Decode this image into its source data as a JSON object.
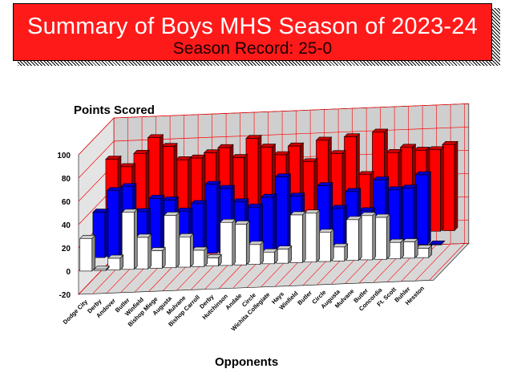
{
  "header": {
    "title": "Summary of Boys MHS Season of 2023-24",
    "subtitle": "Season Record:  25-0"
  },
  "colors": {
    "banner": "#ff1a1a",
    "mhs_points": "#ff0000",
    "avg_points": "#0000ff",
    "margin": "#ffffff",
    "gridlines": "#ff0000"
  },
  "chart_data": {
    "type": "bar",
    "style": "3d-grouped-depth",
    "ylabel": "Points Scored",
    "xlabel": "Opponents",
    "ylim": [
      -20,
      100
    ],
    "yticks": [
      -20,
      0,
      20,
      40,
      60,
      80,
      100
    ],
    "grid": true,
    "categories": [
      "Dodge City",
      "Derby",
      "Andover",
      "Butler",
      "Winfield",
      "Bishop Miege",
      "Augusta",
      "Mulvane",
      "Bishop Carroll",
      "Derby",
      "Hutchinson",
      "Andale",
      "Circle",
      "Wichita Collegiate",
      "Hays",
      "Winfield",
      "Butler",
      "Circle",
      "Augusta",
      "Mulvane",
      "Butler",
      "Concordia",
      "Ft. Scott",
      "Buhler",
      "Hesston"
    ],
    "series": [
      {
        "values": [
          73,
          66,
          77,
          90,
          82,
          70,
          71,
          75,
          79,
          70,
          86,
          78,
          71,
          78,
          64,
          82,
          70,
          84,
          51,
          87,
          69,
          73,
          70,
          70,
          74
        ]
      },
      {
        "values": [
          39,
          57,
          60,
          38,
          49,
          47,
          37,
          43,
          59,
          55,
          43,
          38,
          46,
          63,
          46,
          22,
          54,
          34,
          48,
          31,
          57,
          48,
          49,
          60,
          0
        ]
      },
      {
        "values": [
          28,
          1,
          10,
          49,
          27,
          15,
          45,
          26,
          14,
          7,
          37,
          35,
          17,
          10,
          12,
          41,
          42,
          25,
          12,
          35,
          38,
          36,
          14,
          14,
          8
        ]
      }
    ]
  }
}
